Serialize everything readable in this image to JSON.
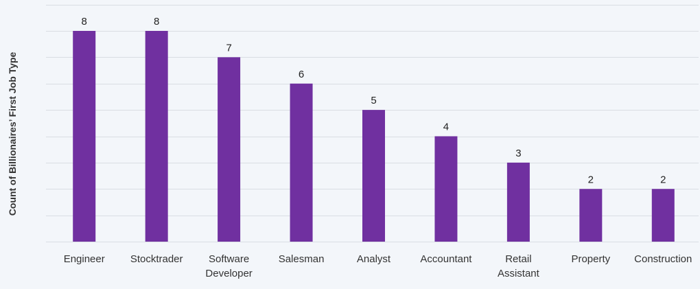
{
  "chart_data": {
    "type": "bar",
    "title": "",
    "xlabel": "",
    "ylabel": "Count of Billionaires’ First Job Type",
    "ylim": [
      0,
      8
    ],
    "grid": true,
    "categories": [
      [
        "Engineer"
      ],
      [
        "Stocktrader"
      ],
      [
        "Software",
        "Developer"
      ],
      [
        "Salesman"
      ],
      [
        "Analyst"
      ],
      [
        "Accountant"
      ],
      [
        "Retail",
        "Assistant"
      ],
      [
        "Property"
      ],
      [
        "Construction"
      ]
    ],
    "values": [
      8,
      8,
      7,
      6,
      5,
      4,
      3,
      2,
      2
    ],
    "colors": {
      "bar": "#7030a0",
      "grid": "#d9dde3",
      "background": "#f3f6fa"
    }
  }
}
